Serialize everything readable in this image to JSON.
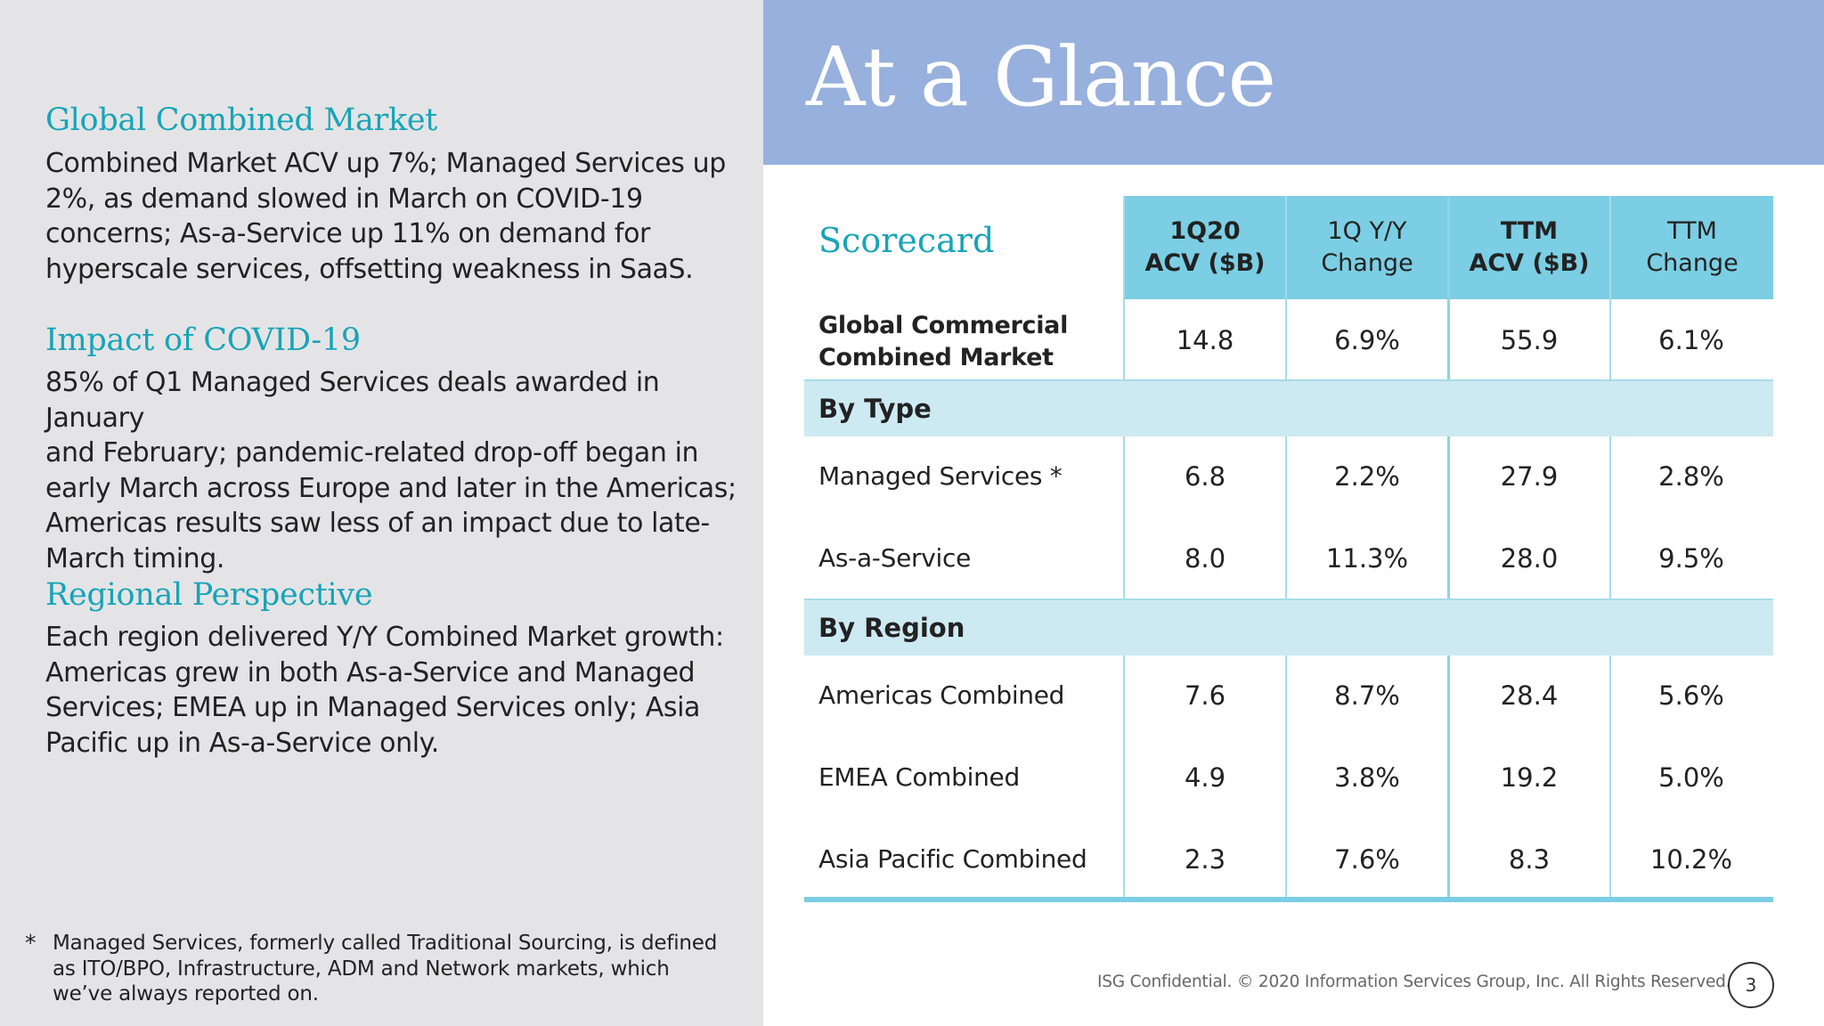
{
  "left": {
    "sections": [
      {
        "title": "Global Combined Market",
        "lines": [
          "Combined Market ACV up 7%; Managed Services up",
          "2%, as demand slowed in March on COVID-19",
          "concerns; As-a-Service up 11% on demand for",
          "hyperscale services, offsetting weakness in SaaS."
        ]
      },
      {
        "title": "Impact of COVID-19",
        "lines": [
          "85% of Q1 Managed Services deals awarded in January",
          "and February; pandemic-related drop-off began in",
          "early March across Europe and later in the Americas;",
          "Americas results saw less of an impact due to late-",
          "March timing."
        ]
      },
      {
        "title": "Regional Perspective",
        "lines": [
          "Each region delivered Y/Y Combined Market growth:",
          "Americas grew in both As-a-Service and Managed",
          "Services; EMEA up in Managed Services only; Asia",
          "Pacific up in As-a-Service only."
        ]
      }
    ],
    "footnote": {
      "marker": "*",
      "lines": [
        "Managed Services, formerly called Traditional Sourcing, is defined",
        "as ITO/BPO, Infrastructure, ADM and Network markets, which",
        "we’ve always reported on."
      ]
    }
  },
  "hero": {
    "title": "At a Glance"
  },
  "scorecard": {
    "title": "Scorecard",
    "headers": [
      {
        "line1": "1Q20",
        "line2": "ACV ($B)"
      },
      {
        "line1": "1Q Y/Y",
        "line2": "Change"
      },
      {
        "line1": "TTM",
        "line2": "ACV ($B)"
      },
      {
        "line1": "TTM",
        "line2": "Change"
      }
    ],
    "global": {
      "label_line1": "Global Commercial",
      "label_line2": "Combined Market",
      "values": [
        "14.8",
        "6.9%",
        "55.9",
        "6.1%"
      ]
    },
    "by_type": {
      "label": "By Type",
      "rows": [
        {
          "label": "Managed Services *",
          "values": [
            "6.8",
            "2.2%",
            "27.9",
            "2.8%"
          ]
        },
        {
          "label": "As-a-Service",
          "values": [
            "8.0",
            "11.3%",
            "28.0",
            "9.5%"
          ]
        }
      ]
    },
    "by_region": {
      "label": "By Region",
      "rows": [
        {
          "label": "Americas Combined",
          "values": [
            "7.6",
            "8.7%",
            "28.4",
            "5.6%"
          ]
        },
        {
          "label": "EMEA Combined",
          "values": [
            "4.9",
            "3.8%",
            "19.2",
            "5.0%"
          ]
        },
        {
          "label": "Asia Pacific Combined",
          "values": [
            "2.3",
            "7.6%",
            "8.3",
            "10.2%"
          ]
        }
      ]
    }
  },
  "footer": {
    "copyright": "ISG Confidential. © 2020 Information Services Group, Inc.  All Rights Reserved.",
    "page_number": "3"
  },
  "colors": {
    "accent_teal": "#17a4b7",
    "header_blue": "#97b0dd",
    "table_header": "#7bcee3",
    "band": "#cdeaf2",
    "left_bg": "#e4e4e6"
  }
}
